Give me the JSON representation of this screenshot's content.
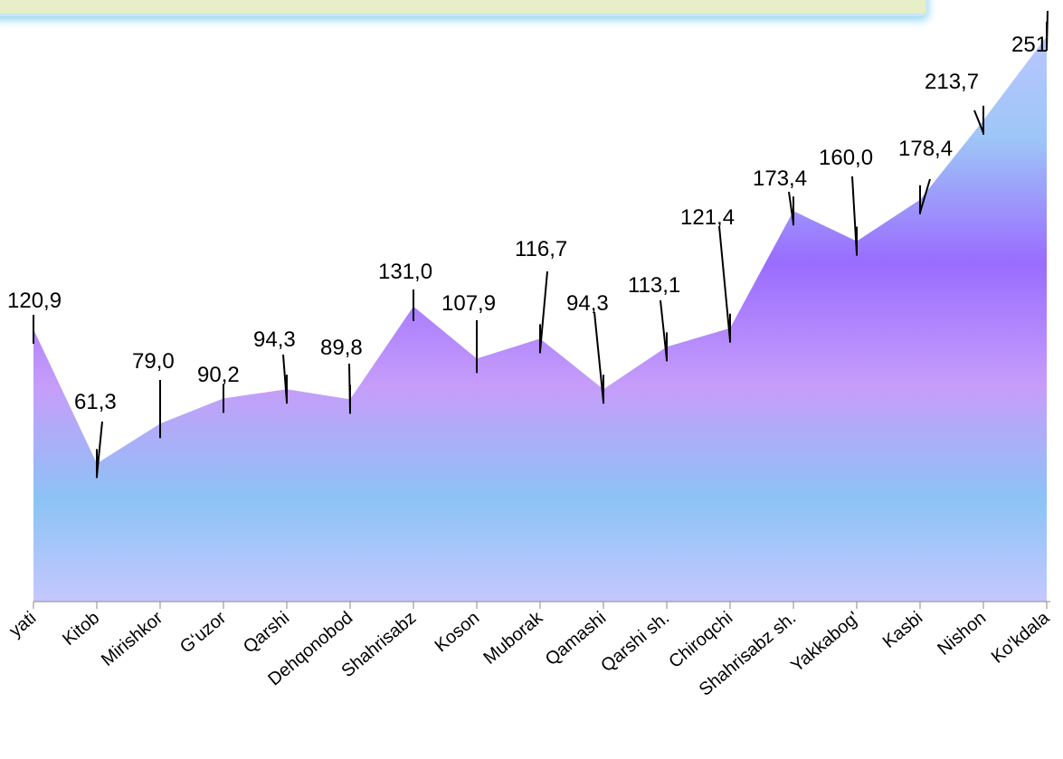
{
  "chart_data": {
    "type": "area",
    "categories": [
      "Kasbi Hayati",
      "Kitob",
      "Mirishkor",
      "G'uzor",
      "Qarshi",
      "Dehqonobod",
      "Shahrisabz",
      "Koson",
      "Muborak",
      "Qamashi",
      "Qarshi sh.",
      "Chiroqchi",
      "Shahrisabz sh.",
      "Yakkabog'",
      "Kasbi",
      "Nishon",
      "Ko'kdala"
    ],
    "tick_labels": [
      "yati",
      "Kitob",
      "Mirishkor",
      "G‘uzor",
      "Qarshi",
      "Dehqonobod",
      "Shahrisabz",
      "Koson",
      "Muborak",
      "Qamashi",
      "Qarshi sh.",
      "Chiroqchi",
      "Shahrisabz sh.",
      "Yakkabog'",
      "Kasbi",
      "Nishon",
      "Ko'kdala"
    ],
    "values": [
      120.9,
      61.3,
      79.0,
      90.2,
      94.3,
      89.8,
      131.0,
      107.9,
      116.7,
      94.3,
      113.1,
      121.4,
      173.4,
      160.0,
      178.4,
      213.7,
      251
    ],
    "data_labels": [
      "120,9",
      "61,3",
      "79,0",
      "90,2",
      "94,3",
      "89,8",
      "131,0",
      "107,9",
      "116,7",
      "94,3",
      "113,1",
      "121,4",
      "173,4",
      "160,0",
      "178,4",
      "213,7",
      "251"
    ],
    "colors": {
      "top": "#b8c6ff",
      "upper": "#9ec6f7",
      "mid": "#9a6cff",
      "lower": "#c69dfa",
      "low": "#8cc3f5",
      "bottom": "#c5c8ff"
    },
    "grid": false,
    "legend": "none"
  }
}
